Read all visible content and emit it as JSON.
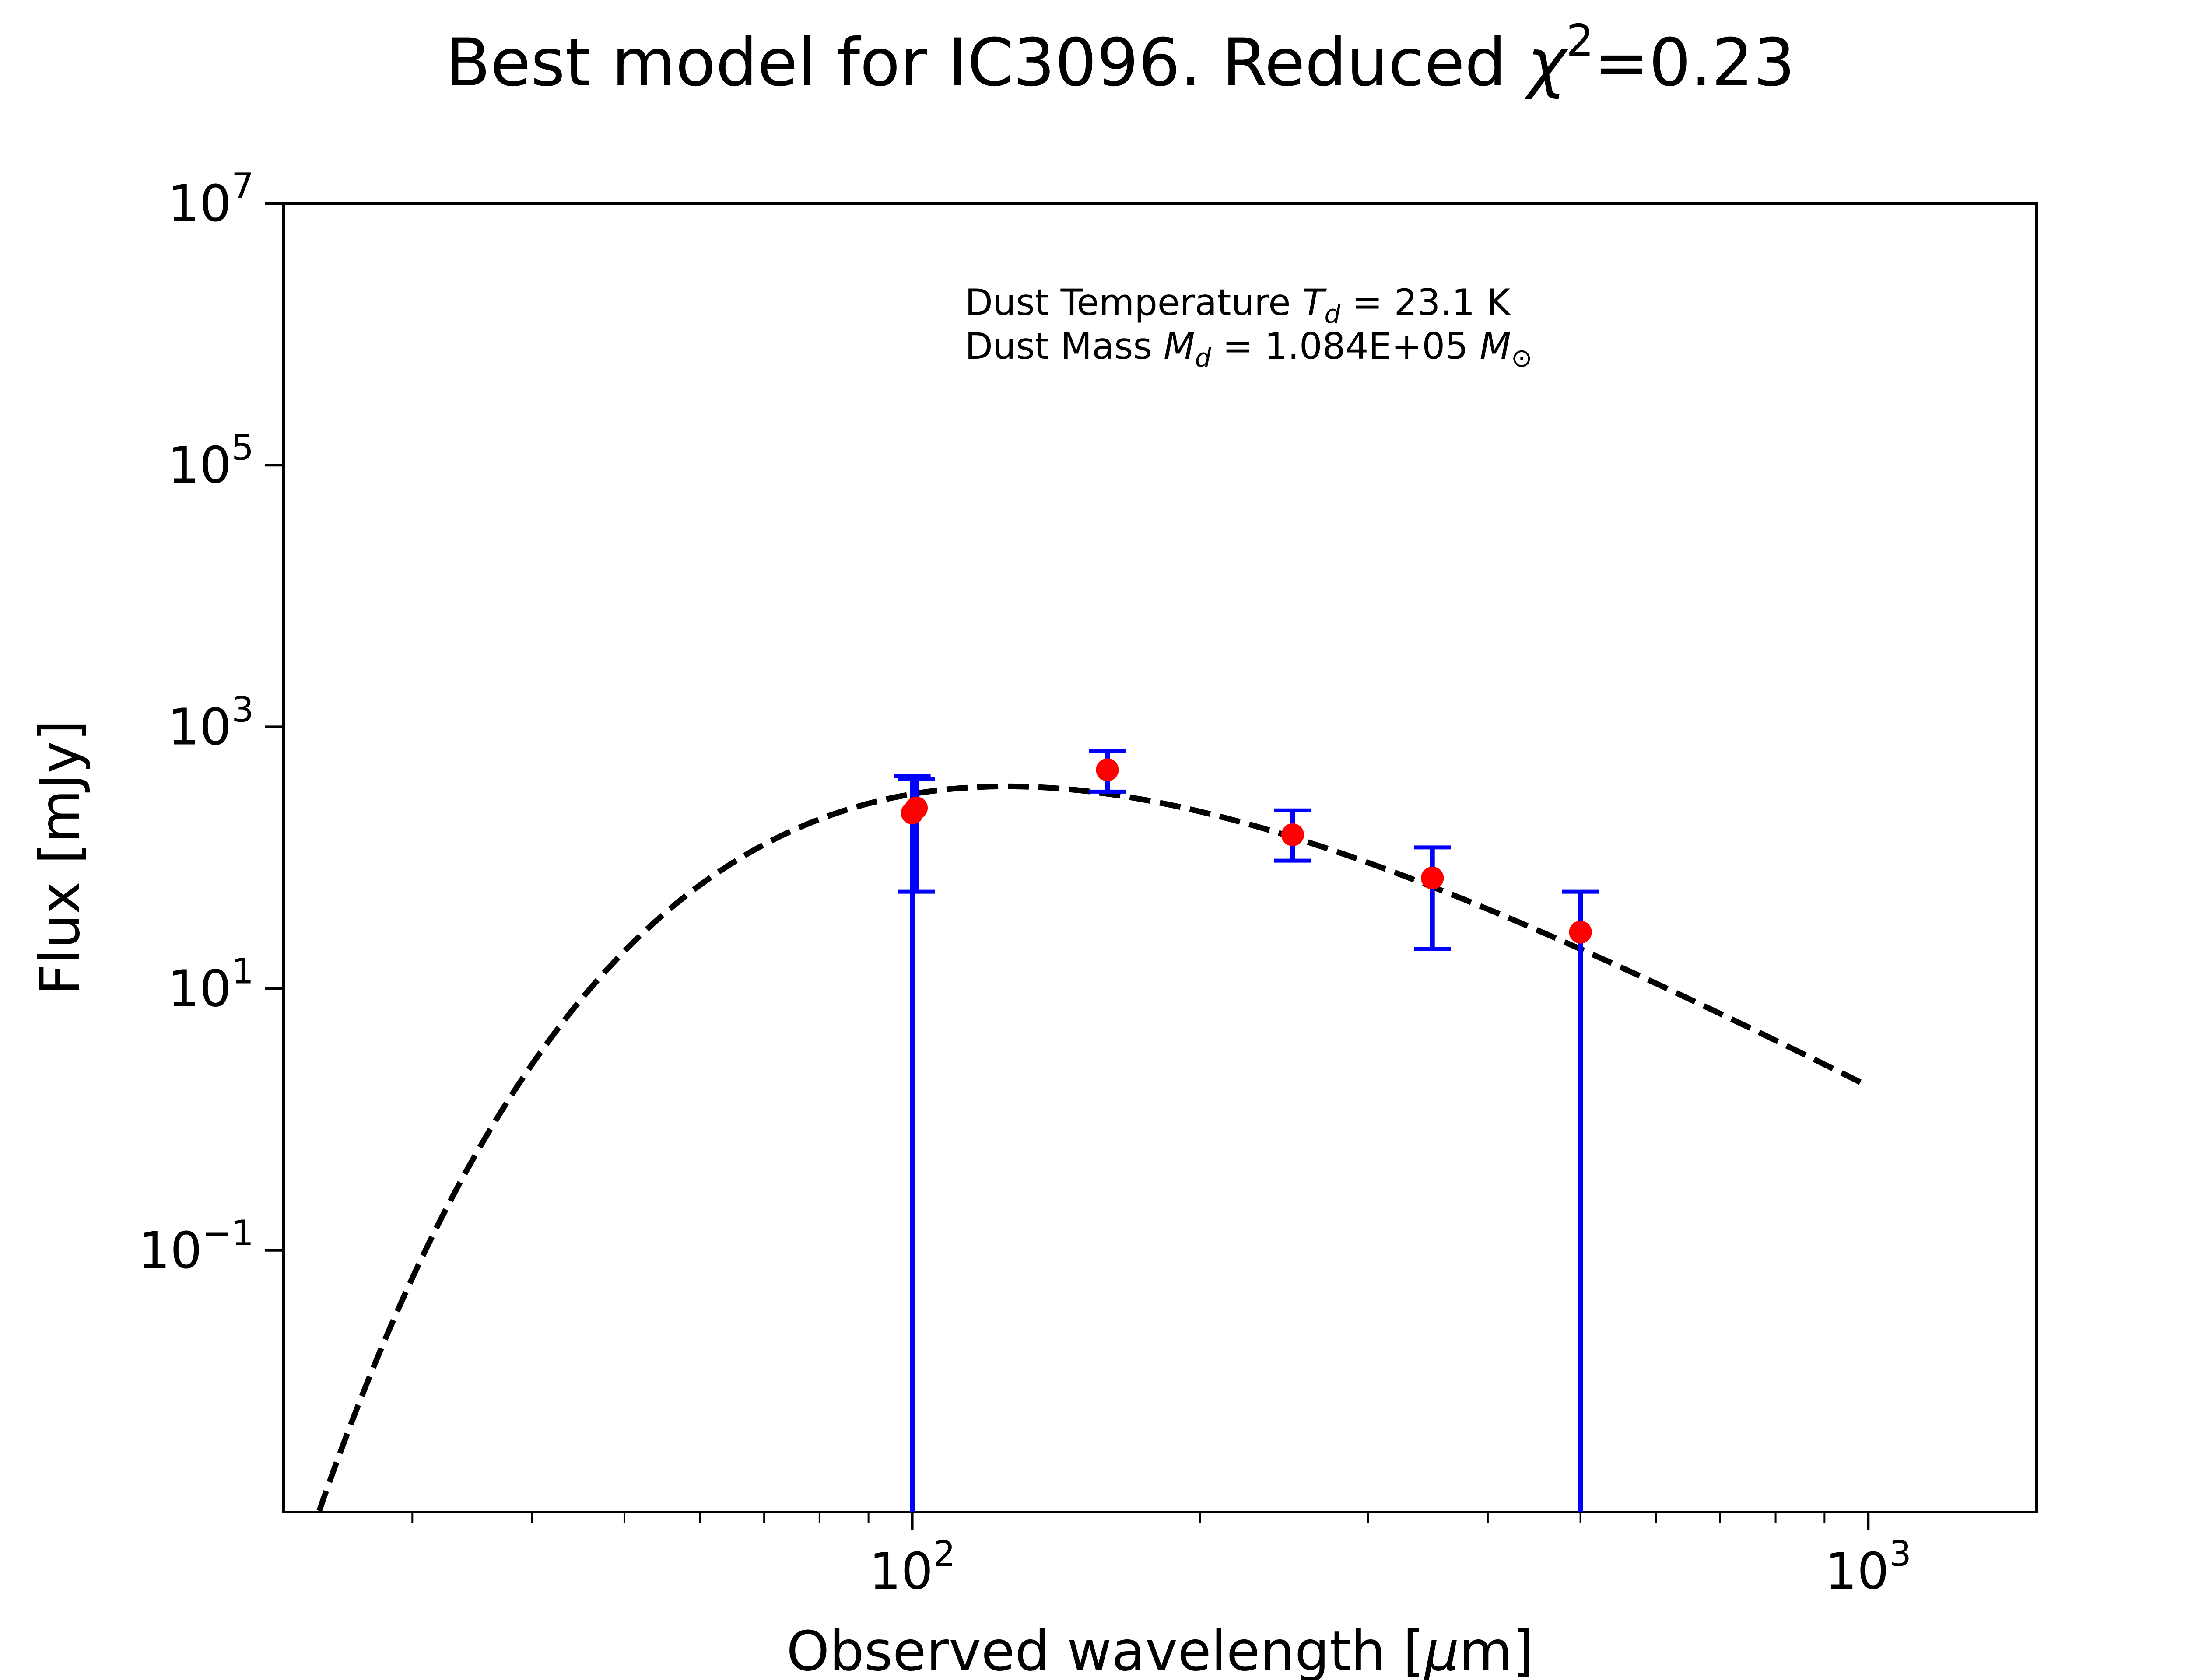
{
  "chart_data": {
    "type": "scatter",
    "title": "Best model for IC3096. Reduced χ²=0.23",
    "title_parts": {
      "prefix": "Best model for IC3096. Reduced ",
      "chi": "χ",
      "exp": "2",
      "suffix": "=0.23"
    },
    "xlabel": "Observed wavelength [μm]",
    "xlabel_parts": {
      "prefix": "Observed wavelength [",
      "mu": "μ",
      "suffix": "m]"
    },
    "ylabel": "Flux [mJy]",
    "xscale": "log",
    "yscale": "log",
    "xlim": [
      22,
      1500
    ],
    "ylim": [
      0.001,
      10000000
    ],
    "x_ticks": [
      {
        "value": 100,
        "base": "10",
        "exp": "2"
      },
      {
        "value": 1000,
        "base": "10",
        "exp": "3"
      }
    ],
    "y_ticks": [
      {
        "value": 0.1,
        "base": "10",
        "exp": "−1"
      },
      {
        "value": 10,
        "base": "10",
        "exp": "1"
      },
      {
        "value": 1000,
        "base": "10",
        "exp": "3"
      },
      {
        "value": 100000,
        "base": "10",
        "exp": "5"
      },
      {
        "value": 10000000,
        "base": "10",
        "exp": "7"
      }
    ],
    "grid": false,
    "annotation": {
      "line1": {
        "prefix": "Dust Temperature ",
        "sym": "T",
        "sub": "d",
        "suffix": " = 23.1 K"
      },
      "line2": {
        "prefix": "Dust Mass ",
        "sym": "M",
        "sub": "d",
        "suffix": " = 1.084E+05 ",
        "sym2": "M",
        "sub2": "⊙"
      }
    },
    "model": {
      "style": "dashed",
      "color": "#000000",
      "temperature_K": 23.1,
      "beta": 2,
      "x_range": [
        22,
        1000
      ],
      "peak_wavelength": 130,
      "peak_flux": 350
    },
    "series": [
      {
        "marker_color": "#ff0000",
        "errorbar_color": "#0000ff",
        "points": [
          {
            "x": 100,
            "y": 220,
            "ylo": 0.001,
            "yhi": 420
          },
          {
            "x": 101,
            "y": 240,
            "ylo": 55,
            "yhi": 400
          },
          {
            "x": 160,
            "y": 470,
            "ylo": 320,
            "yhi": 650
          },
          {
            "x": 250,
            "y": 150,
            "ylo": 95,
            "yhi": 230
          },
          {
            "x": 350,
            "y": 70,
            "ylo": 20,
            "yhi": 120
          },
          {
            "x": 500,
            "y": 27,
            "ylo": 0.001,
            "yhi": 55
          }
        ]
      }
    ]
  }
}
